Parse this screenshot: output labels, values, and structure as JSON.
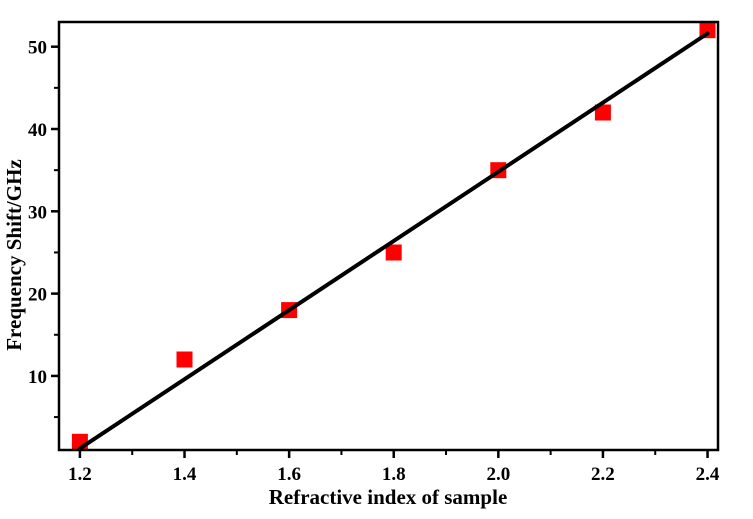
{
  "chart_data": {
    "type": "scatter",
    "title": "",
    "xlabel": "Refractive index of sample",
    "ylabel": "Frequency Shift/GHz",
    "xlim": [
      1.16,
      2.42
    ],
    "ylim": [
      1,
      53
    ],
    "xticks": [
      "1.2",
      "1.4",
      "1.6",
      "1.8",
      "2.0",
      "2.2",
      "2.4"
    ],
    "yticks": [
      "10",
      "20",
      "30",
      "40",
      "50"
    ],
    "grid": false,
    "legend": "none",
    "colors": {
      "points": "#ff0000",
      "fit": "#000000",
      "axes": "#000000"
    },
    "series": [
      {
        "type": "scatter",
        "marker": "square",
        "x": [
          1.2,
          1.4,
          1.6,
          1.8,
          2.0,
          2.2,
          2.4
        ],
        "y": [
          2,
          12,
          18,
          25,
          35,
          42,
          52
        ]
      },
      {
        "type": "line",
        "x": [
          1.2,
          2.4
        ],
        "y": [
          1.2,
          51.6
        ]
      }
    ]
  }
}
